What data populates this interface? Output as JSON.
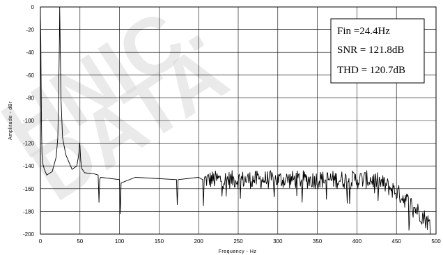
{
  "watermark": [
    "HNIC.",
    "DATA"
  ],
  "chart_data": {
    "type": "line",
    "title": "",
    "xlabel": "Frequency - Hz",
    "ylabel": "Amplitude - dBr",
    "xlim": [
      0,
      500
    ],
    "ylim": [
      -200,
      0
    ],
    "xticks": [
      0,
      50,
      100,
      150,
      200,
      250,
      300,
      350,
      400,
      450,
      500
    ],
    "yticks": [
      0,
      -20,
      -40,
      -60,
      -80,
      -100,
      -120,
      -140,
      -160,
      -180,
      -200
    ],
    "grid": true,
    "line_color": "#000000",
    "annotation": {
      "lines": [
        "Fin =24.4Hz",
        "SNR = 121.8dB",
        "THD = 120.7dB"
      ],
      "position": "top-right"
    },
    "series": [
      {
        "noise_floor_db": -152,
        "noise_spread_db": 8,
        "rolloff_start_hz": 415,
        "rolloff_end_hz": 493,
        "rolloff_end_db": -192,
        "x": [
          0,
          0.5,
          1,
          1.5,
          2,
          3,
          5,
          8,
          15,
          20,
          22,
          23,
          24,
          24.4,
          25,
          26,
          28,
          32,
          40,
          46,
          48,
          49,
          49.5,
          50,
          51,
          52,
          56,
          68,
          73,
          74,
          75,
          76,
          100,
          101,
          102,
          120,
          172,
          173,
          174,
          200,
          205,
          206,
          207
        ],
        "y": [
          -5,
          -30,
          -70,
          -110,
          -130,
          -138,
          -143,
          -148,
          -145,
          -132,
          -115,
          -80,
          -30,
          0,
          -30,
          -80,
          -115,
          -130,
          -143,
          -140,
          -132,
          -126,
          -120,
          -122,
          -135,
          -142,
          -146,
          -147,
          -148,
          -172,
          -152,
          -150,
          -152,
          -182,
          -155,
          -150,
          -152,
          -174,
          -152,
          -150,
          -152,
          -175,
          -152
        ]
      }
    ]
  }
}
